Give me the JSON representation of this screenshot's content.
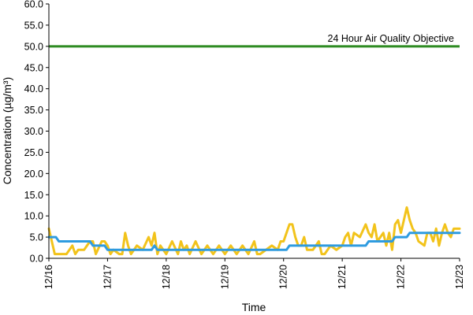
{
  "chart_data": {
    "type": "line",
    "title": "",
    "xlabel": "Time",
    "ylabel": "Concentration (µg/m³)",
    "ylim": [
      0,
      60
    ],
    "yticks": [
      "0.0",
      "5.0",
      "10.0",
      "15.0",
      "20.0",
      "25.0",
      "30.0",
      "35.0",
      "40.0",
      "45.0",
      "50.0",
      "55.0",
      "60.0"
    ],
    "xlim": [
      0,
      7
    ],
    "xticks": [
      "12/16",
      "12/17",
      "12/18",
      "12/19",
      "12/20",
      "12/21",
      "12/22",
      "12/23"
    ],
    "grid": false,
    "legend": "none",
    "annotation": {
      "text": "24 Hour Air Quality Objective"
    },
    "series": [
      {
        "color": "#f2c31b",
        "points": [
          [
            0.0,
            7.0
          ],
          [
            0.05,
            4.0
          ],
          [
            0.1,
            1.0
          ],
          [
            0.2,
            1.0
          ],
          [
            0.3,
            1.0
          ],
          [
            0.4,
            3.0
          ],
          [
            0.45,
            1.0
          ],
          [
            0.5,
            2.0
          ],
          [
            0.6,
            2.0
          ],
          [
            0.7,
            4.0
          ],
          [
            0.75,
            4.0
          ],
          [
            0.8,
            1.0
          ],
          [
            0.9,
            4.0
          ],
          [
            0.95,
            4.0
          ],
          [
            1.0,
            3.0
          ],
          [
            1.05,
            1.0
          ],
          [
            1.1,
            2.0
          ],
          [
            1.2,
            1.0
          ],
          [
            1.25,
            1.0
          ],
          [
            1.3,
            6.0
          ],
          [
            1.35,
            3.0
          ],
          [
            1.4,
            1.0
          ],
          [
            1.5,
            3.0
          ],
          [
            1.6,
            2.0
          ],
          [
            1.7,
            5.0
          ],
          [
            1.75,
            3.0
          ],
          [
            1.8,
            6.0
          ],
          [
            1.85,
            1.0
          ],
          [
            1.9,
            3.0
          ],
          [
            2.0,
            1.0
          ],
          [
            2.1,
            4.0
          ],
          [
            2.2,
            1.0
          ],
          [
            2.25,
            4.0
          ],
          [
            2.3,
            2.0
          ],
          [
            2.35,
            3.0
          ],
          [
            2.4,
            1.0
          ],
          [
            2.5,
            4.0
          ],
          [
            2.6,
            1.0
          ],
          [
            2.7,
            3.0
          ],
          [
            2.8,
            1.0
          ],
          [
            2.9,
            3.0
          ],
          [
            3.0,
            1.0
          ],
          [
            3.1,
            3.0
          ],
          [
            3.2,
            1.0
          ],
          [
            3.3,
            3.0
          ],
          [
            3.4,
            1.0
          ],
          [
            3.5,
            4.0
          ],
          [
            3.55,
            1.0
          ],
          [
            3.6,
            1.0
          ],
          [
            3.7,
            2.0
          ],
          [
            3.8,
            3.0
          ],
          [
            3.9,
            2.0
          ],
          [
            3.95,
            4.0
          ],
          [
            4.0,
            4.0
          ],
          [
            4.1,
            8.0
          ],
          [
            4.15,
            8.0
          ],
          [
            4.2,
            5.0
          ],
          [
            4.25,
            3.0
          ],
          [
            4.3,
            3.0
          ],
          [
            4.35,
            5.0
          ],
          [
            4.4,
            2.0
          ],
          [
            4.5,
            2.0
          ],
          [
            4.6,
            4.0
          ],
          [
            4.65,
            1.0
          ],
          [
            4.7,
            1.0
          ],
          [
            4.8,
            3.0
          ],
          [
            4.9,
            2.0
          ],
          [
            5.0,
            3.0
          ],
          [
            5.05,
            5.0
          ],
          [
            5.1,
            6.0
          ],
          [
            5.15,
            3.0
          ],
          [
            5.2,
            6.0
          ],
          [
            5.3,
            5.0
          ],
          [
            5.4,
            8.0
          ],
          [
            5.45,
            6.0
          ],
          [
            5.5,
            5.0
          ],
          [
            5.55,
            8.0
          ],
          [
            5.6,
            4.0
          ],
          [
            5.7,
            6.0
          ],
          [
            5.75,
            3.0
          ],
          [
            5.8,
            6.0
          ],
          [
            5.85,
            2.0
          ],
          [
            5.9,
            8.0
          ],
          [
            5.95,
            9.0
          ],
          [
            6.0,
            6.0
          ],
          [
            6.05,
            9.0
          ],
          [
            6.1,
            12.0
          ],
          [
            6.15,
            9.0
          ],
          [
            6.2,
            7.0
          ],
          [
            6.25,
            6.0
          ],
          [
            6.3,
            4.0
          ],
          [
            6.4,
            3.0
          ],
          [
            6.45,
            6.0
          ],
          [
            6.5,
            6.0
          ],
          [
            6.55,
            4.0
          ],
          [
            6.6,
            7.0
          ],
          [
            6.65,
            3.0
          ],
          [
            6.7,
            6.0
          ],
          [
            6.75,
            8.0
          ],
          [
            6.8,
            6.0
          ],
          [
            6.85,
            5.0
          ],
          [
            6.9,
            7.0
          ],
          [
            7.0,
            7.0
          ]
        ]
      },
      {
        "color": "#2e9be0",
        "points": [
          [
            0.0,
            5.0
          ],
          [
            0.12,
            5.0
          ],
          [
            0.17,
            4.0
          ],
          [
            0.7,
            4.0
          ],
          [
            0.75,
            3.0
          ],
          [
            0.95,
            3.0
          ],
          [
            1.0,
            2.0
          ],
          [
            1.75,
            2.0
          ],
          [
            1.8,
            3.0
          ],
          [
            1.85,
            2.0
          ],
          [
            4.05,
            2.0
          ],
          [
            4.1,
            3.0
          ],
          [
            5.4,
            3.0
          ],
          [
            5.45,
            4.0
          ],
          [
            5.85,
            4.0
          ],
          [
            5.9,
            5.0
          ],
          [
            6.1,
            5.0
          ],
          [
            6.15,
            6.0
          ],
          [
            7.0,
            6.0
          ]
        ]
      }
    ],
    "objective": {
      "value": 50.0,
      "color": "#2e8b22"
    }
  }
}
